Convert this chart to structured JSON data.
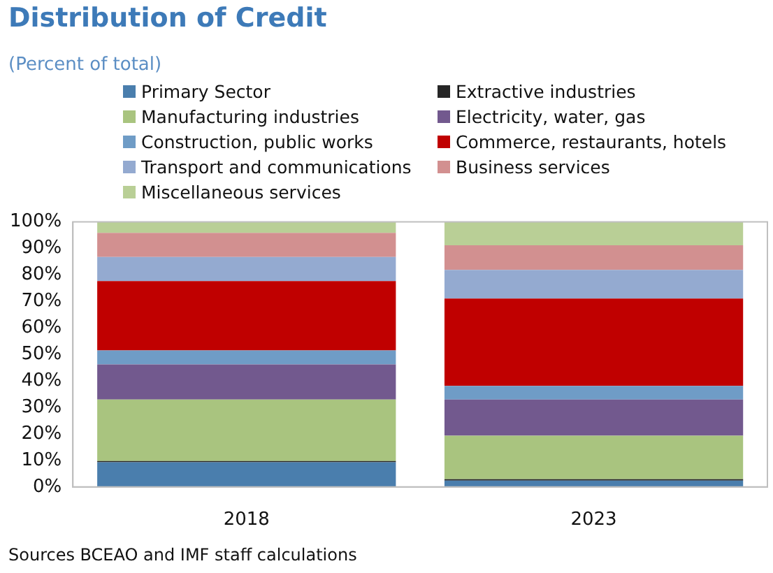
{
  "chart_data": {
    "type": "bar",
    "title": "Distribution of Credit",
    "subtitle": "(Percent of total)",
    "stacked": true,
    "categories": [
      "2018",
      "2023"
    ],
    "series": [
      {
        "name": "Primary Sector",
        "color": "#4a7ead",
        "values": [
          9.3,
          2.4
        ]
      },
      {
        "name": "Extractive industries",
        "color": "#262626",
        "values": [
          0.5,
          0.5
        ]
      },
      {
        "name": "Manufacturing industries",
        "color": "#a9c47f",
        "values": [
          23.2,
          16.4
        ]
      },
      {
        "name": "Electricity, water, gas",
        "color": "#72598e",
        "values": [
          13.2,
          13.7
        ]
      },
      {
        "name": "Construction, public works",
        "color": "#6f9cc6",
        "values": [
          5.3,
          5.1
        ]
      },
      {
        "name": "Commerce, restaurants, hotels",
        "color": "#c00000",
        "values": [
          26.2,
          33.0
        ]
      },
      {
        "name": "Transport and communications",
        "color": "#94aad0",
        "values": [
          9.1,
          10.8
        ]
      },
      {
        "name": "Business services",
        "color": "#d29090",
        "values": [
          9.1,
          9.3
        ]
      },
      {
        "name": "Miscellaneous services",
        "color": "#b9cf96",
        "values": [
          4.1,
          8.8
        ]
      }
    ],
    "ylim": [
      0,
      100
    ],
    "yticks": [
      {
        "value": 0,
        "label": "0%"
      },
      {
        "value": 10,
        "label": "10%"
      },
      {
        "value": 20,
        "label": "20%"
      },
      {
        "value": 30,
        "label": "30%"
      },
      {
        "value": 40,
        "label": "40%"
      },
      {
        "value": 50,
        "label": "50%"
      },
      {
        "value": 60,
        "label": "60%"
      },
      {
        "value": 70,
        "label": "70%"
      },
      {
        "value": 80,
        "label": "80%"
      },
      {
        "value": 90,
        "label": "90%"
      },
      {
        "value": 100,
        "label": "100%"
      }
    ],
    "grid": false,
    "legend": "top",
    "annotations": [
      "Sources BCEAO and IMF staff calculations"
    ]
  }
}
